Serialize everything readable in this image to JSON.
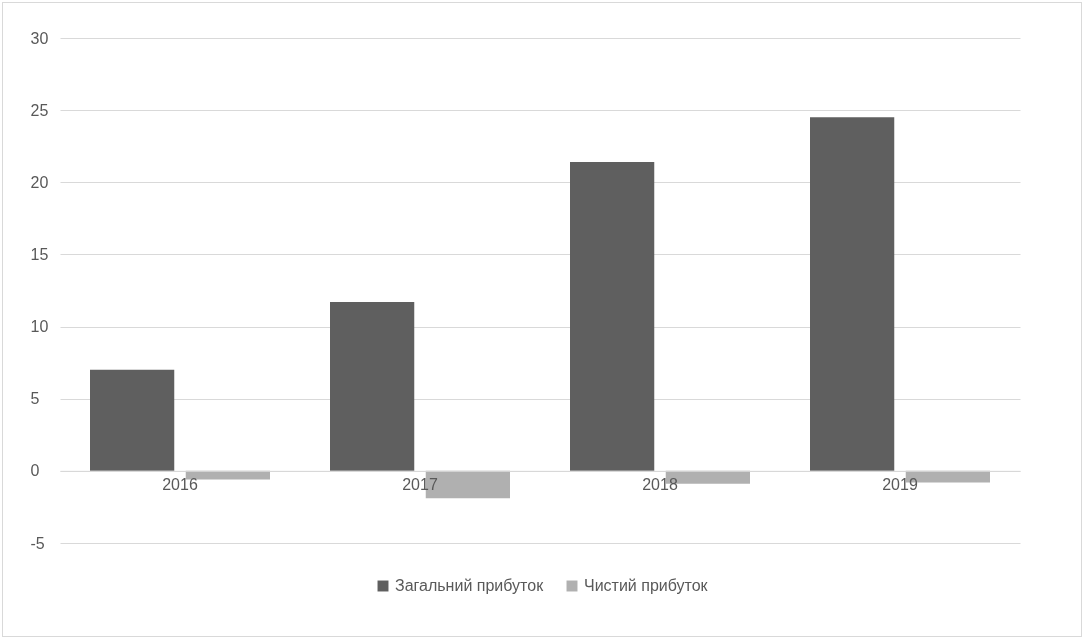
{
  "chart_data": {
    "type": "bar",
    "categories": [
      "2016",
      "2017",
      "2018",
      "2019"
    ],
    "series": [
      {
        "name": "Загальний прибуток",
        "color": "#5f5f5f",
        "values": [
          7.0,
          11.7,
          21.4,
          24.5
        ]
      },
      {
        "name": "Чистий прибуток",
        "color": "#b0b0b0",
        "values": [
          -0.6,
          -1.9,
          -0.9,
          -0.8
        ]
      }
    ],
    "ylim": [
      -5,
      30
    ],
    "yticks": [
      -5,
      0,
      5,
      10,
      15,
      20,
      25,
      30
    ],
    "grid": "y",
    "legend": "bottom"
  }
}
